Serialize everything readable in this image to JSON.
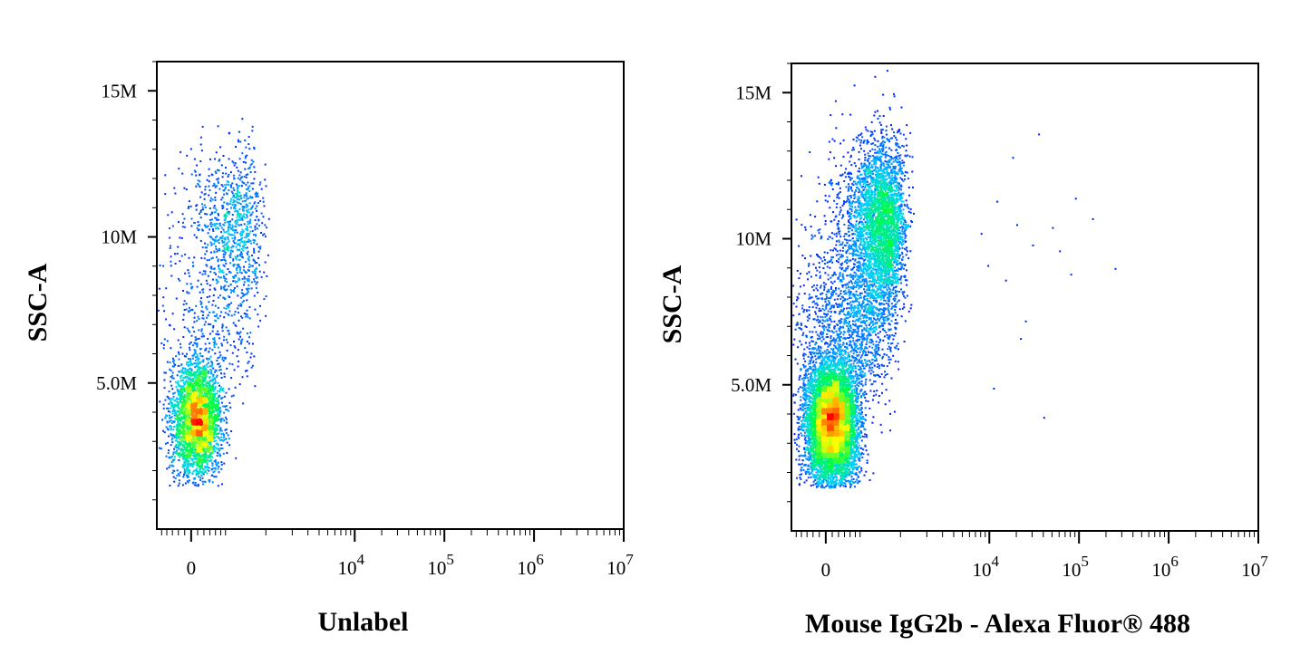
{
  "colors": {
    "background": "#ffffff",
    "axis": "#000000",
    "density_low": "#0000ff",
    "density_mid": "#00d0ff",
    "density_mid2": "#00ff40",
    "density_high": "#ffff00",
    "density_peak": "#ff0000"
  },
  "chart_data": [
    {
      "type": "scatter",
      "style": "density-dot-plot",
      "ylabel": "SSC-A",
      "xlabel": "Unlabel",
      "y_scale": "linear",
      "x_scale": "biexponential",
      "ylim": [
        0,
        16000000
      ],
      "xlim": [
        -300,
        10000000
      ],
      "y_ticks": [
        {
          "value": 5000000,
          "label": "5.0M"
        },
        {
          "value": 10000000,
          "label": "10M"
        },
        {
          "value": 15000000,
          "label": "15M"
        }
      ],
      "x_ticks": [
        {
          "value": 0,
          "label": "0",
          "exp": ""
        },
        {
          "value": 10000,
          "label": "10",
          "exp": "4"
        },
        {
          "value": 100000,
          "label": "10",
          "exp": "5"
        },
        {
          "value": 1000000,
          "label": "10",
          "exp": "6"
        },
        {
          "value": 10000000,
          "label": "10",
          "exp": "7"
        }
      ],
      "populations": [
        {
          "x_center": 40,
          "x_spread": 100,
          "y_center": 3800000,
          "y_spread": 1000000,
          "count": 3200
        },
        {
          "x_center": 400,
          "x_spread": 250,
          "y_center": 10500000,
          "y_spread": 1200000,
          "count": 900
        },
        {
          "x_center": 200,
          "x_spread": 250,
          "y_center": 7200000,
          "y_spread": 1200000,
          "count": 350
        }
      ]
    },
    {
      "type": "scatter",
      "style": "density-dot-plot",
      "ylabel": "SSC-A",
      "xlabel": "Mouse IgG2b - Alexa Fluor® 488",
      "y_scale": "linear",
      "x_scale": "biexponential",
      "ylim": [
        0,
        16000000
      ],
      "xlim": [
        -300,
        10000000
      ],
      "y_ticks": [
        {
          "value": 5000000,
          "label": "5.0M"
        },
        {
          "value": 10000000,
          "label": "10M"
        },
        {
          "value": 15000000,
          "label": "15M"
        }
      ],
      "x_ticks": [
        {
          "value": 0,
          "label": "0",
          "exp": ""
        },
        {
          "value": 10000,
          "label": "10",
          "exp": "4"
        },
        {
          "value": 100000,
          "label": "10",
          "exp": "5"
        },
        {
          "value": 1000000,
          "label": "10",
          "exp": "6"
        },
        {
          "value": 10000000,
          "label": "10",
          "exp": "7"
        }
      ],
      "populations": [
        {
          "x_center": 40,
          "x_spread": 110,
          "y_center": 3700000,
          "y_spread": 1100000,
          "count": 7000
        },
        {
          "x_center": 550,
          "x_spread": 250,
          "y_center": 10500000,
          "y_spread": 1400000,
          "count": 3600
        },
        {
          "x_center": 250,
          "x_spread": 260,
          "y_center": 7200000,
          "y_spread": 1300000,
          "count": 1400
        }
      ],
      "outliers": [
        {
          "x": 8000,
          "y": 10200000
        },
        {
          "x": 12000,
          "y": 11300000
        },
        {
          "x": 20000,
          "y": 10500000
        },
        {
          "x": 30000,
          "y": 9800000
        },
        {
          "x": 50000,
          "y": 10400000
        },
        {
          "x": 90000,
          "y": 11400000
        },
        {
          "x": 140000,
          "y": 10700000
        },
        {
          "x": 250000,
          "y": 9000000
        },
        {
          "x": 15000,
          "y": 8600000
        },
        {
          "x": 25000,
          "y": 7200000
        },
        {
          "x": 11000,
          "y": 4900000
        },
        {
          "x": 40000,
          "y": 3900000
        },
        {
          "x": 35000,
          "y": 13600000
        },
        {
          "x": 18000,
          "y": 12800000
        },
        {
          "x": 60000,
          "y": 9600000
        },
        {
          "x": 9500,
          "y": 9100000
        },
        {
          "x": 22000,
          "y": 6600000
        },
        {
          "x": 80000,
          "y": 8800000
        }
      ]
    }
  ]
}
